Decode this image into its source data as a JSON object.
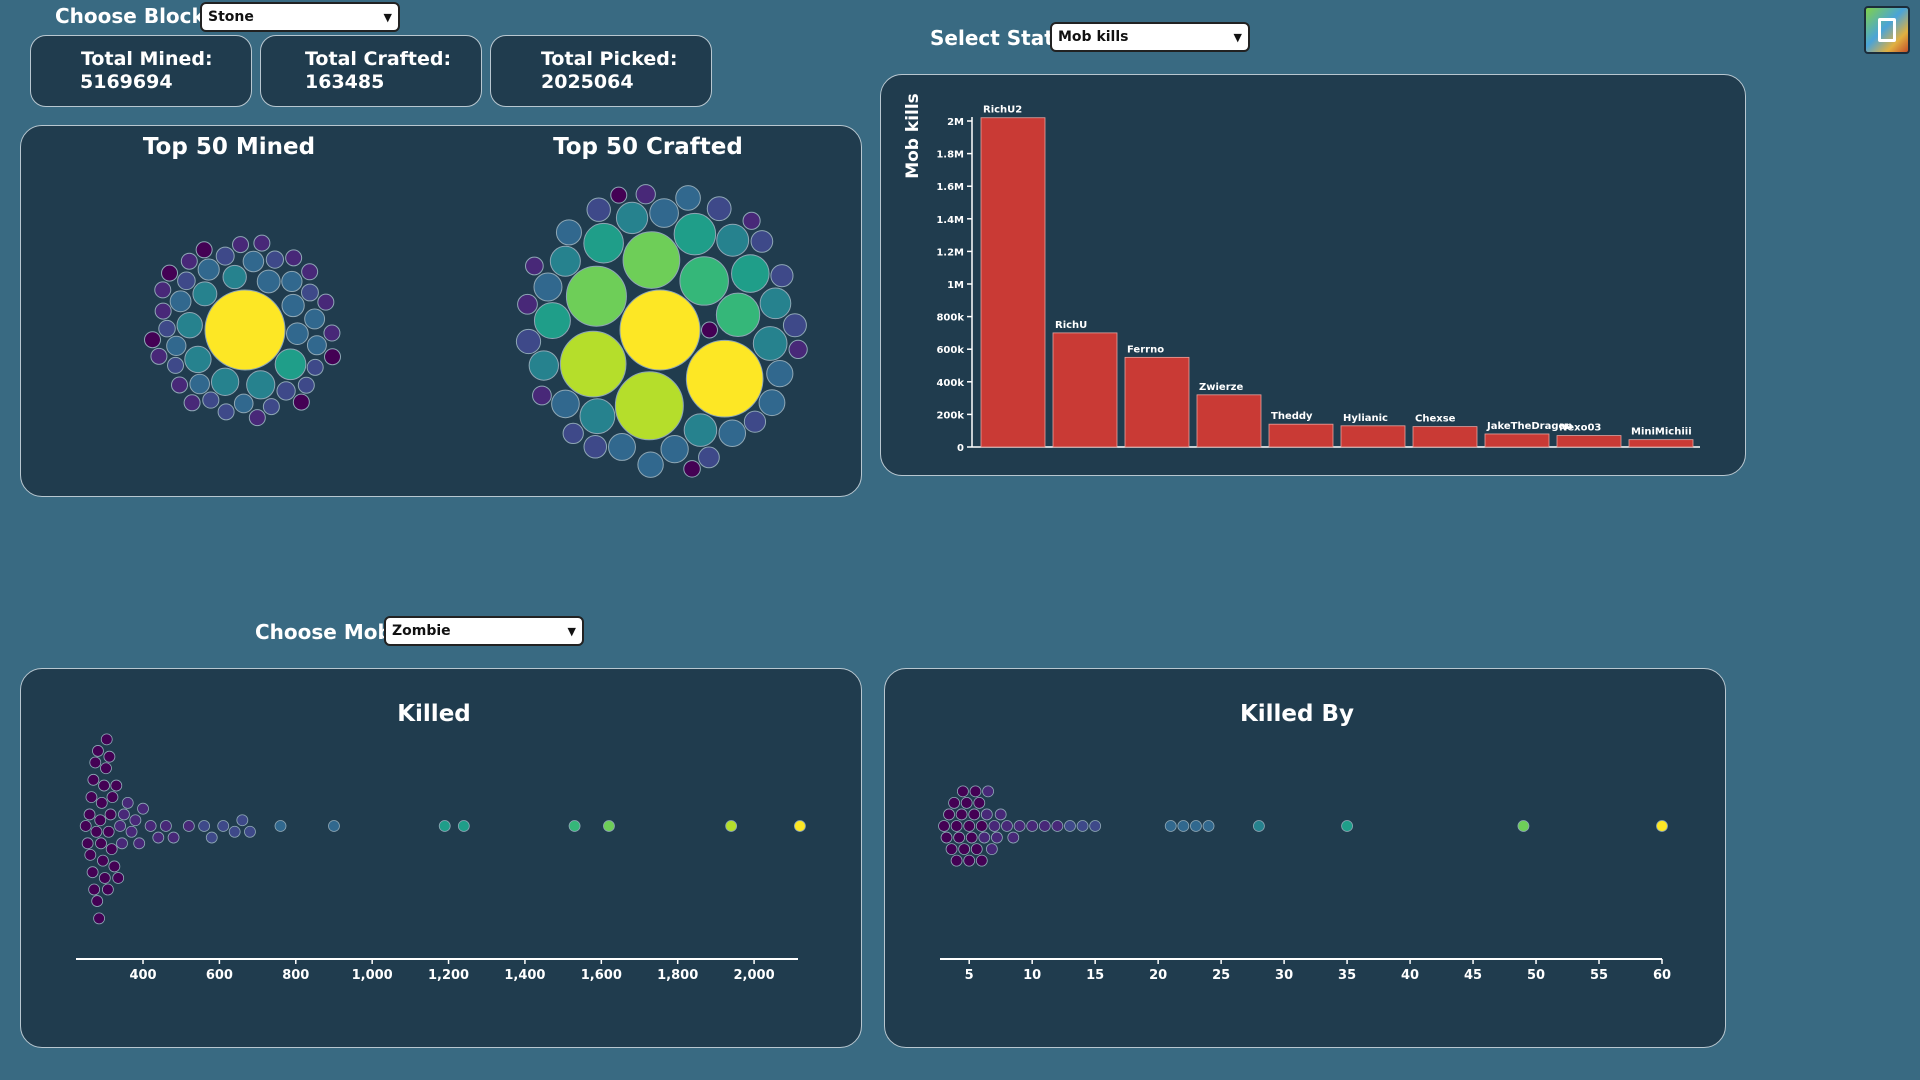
{
  "controls": {
    "block_label": "Choose Block:",
    "block_value": "Stone",
    "stat_label": "Select Stat:",
    "stat_value": "Mob kills",
    "mob_label": "Choose Mob:",
    "mob_value": "Zombie"
  },
  "totals": {
    "mined_label": "Total Mined:",
    "mined_value": "5169694",
    "crafted_label": "Total Crafted:",
    "crafted_value": "163485",
    "picked_label": "Total Picked:",
    "picked_value": "2025064"
  },
  "titles": {
    "top_mined": "Top 50 Mined",
    "top_crafted": "Top 50 Crafted",
    "killed": "Killed",
    "killed_by": "Killed By"
  },
  "colors": {
    "background": "#396a82",
    "panel": "#203c4e",
    "bar": "#c93a35",
    "viridis": [
      "#440154",
      "#482878",
      "#3e4989",
      "#31688e",
      "#26828e",
      "#1f9e89",
      "#35b779",
      "#6ece58",
      "#b5de2b",
      "#fde725"
    ]
  },
  "chart_data": [
    {
      "type": "bubble",
      "title": "Top 50 Mined",
      "values": [
        5169694,
        760000,
        640000,
        600000,
        560000,
        520000,
        460000,
        440000,
        420000,
        400000,
        380000,
        360000,
        350000,
        340000,
        330000,
        320000,
        310000,
        300000,
        290000,
        280000,
        270000,
        260000,
        250000,
        240000,
        230000,
        220000,
        210000,
        200000,
        195000,
        190000,
        185000,
        180000,
        175000,
        170000,
        165000,
        160000,
        155000,
        150000,
        145000,
        140000,
        135000,
        130000,
        125000,
        120000,
        115000,
        110000,
        105000,
        100000,
        95000,
        90000
      ]
    },
    {
      "type": "bubble",
      "title": "Top 50 Crafted",
      "values": [
        163485,
        150000,
        118000,
        110000,
        92000,
        82000,
        60000,
        48000,
        44000,
        40000,
        36000,
        33000,
        31000,
        29000,
        27000,
        26000,
        25000,
        24000,
        23000,
        22000,
        21000,
        20000,
        19500,
        19000,
        18500,
        18000,
        17500,
        17000,
        16500,
        16000,
        15500,
        15000,
        14500,
        14000,
        13500,
        13000,
        12500,
        12000,
        11500,
        11000,
        10500,
        10000,
        9500,
        9000,
        8500,
        8000,
        7500,
        7000,
        6500,
        6000
      ]
    },
    {
      "type": "bar",
      "categories": [
        "RichU2",
        "RichU",
        "Ferrno",
        "Zwierze",
        "Theddy",
        "Hylianic",
        "Chexse",
        "JakeTheDragon",
        "Nexo03",
        "MiniMichiii"
      ],
      "values": [
        2020000,
        700000,
        550000,
        320000,
        140000,
        130000,
        125000,
        80000,
        70000,
        45000
      ],
      "ylabel": "Mob kills",
      "ylim": [
        0,
        2000000
      ],
      "yticks": [
        "0",
        "200k",
        "400k",
        "600k",
        "800k",
        "1M",
        "1.2M",
        "1.4M",
        "1.6M",
        "1.8M",
        "2M"
      ]
    },
    {
      "type": "scatter",
      "title": "Killed",
      "xlim": [
        235,
        2115
      ],
      "xticks": [
        "400",
        "600",
        "800",
        "1,000",
        "1,200",
        "1,400",
        "1,600",
        "1,800",
        "2,000"
      ],
      "x": [
        250,
        255,
        260,
        262,
        265,
        268,
        270,
        272,
        275,
        278,
        280,
        282,
        285,
        288,
        290,
        292,
        295,
        298,
        300,
        303,
        305,
        308,
        310,
        312,
        315,
        318,
        320,
        325,
        330,
        335,
        340,
        345,
        350,
        360,
        370,
        380,
        390,
        400,
        420,
        440,
        460,
        480,
        520,
        560,
        580,
        610,
        640,
        660,
        680,
        760,
        900,
        1190,
        1240,
        1530,
        1620,
        1940,
        2120
      ]
    },
    {
      "type": "scatter",
      "title": "Killed By",
      "xlim": [
        3,
        60
      ],
      "xticks": [
        "5",
        "10",
        "15",
        "20",
        "25",
        "30",
        "35",
        "40",
        "45",
        "50",
        "55",
        "60"
      ],
      "x": [
        3,
        3.2,
        3.4,
        3.6,
        3.8,
        4,
        4,
        4.2,
        4.4,
        4.5,
        4.6,
        4.8,
        5,
        5,
        5.2,
        5.4,
        5.5,
        5.6,
        5.8,
        6,
        6,
        6.2,
        6.4,
        6.5,
        6.8,
        7,
        7.2,
        7.5,
        8,
        8.5,
        9,
        10,
        11,
        12,
        13,
        14,
        15,
        21,
        22,
        23,
        24,
        28,
        35,
        49,
        60
      ]
    }
  ]
}
